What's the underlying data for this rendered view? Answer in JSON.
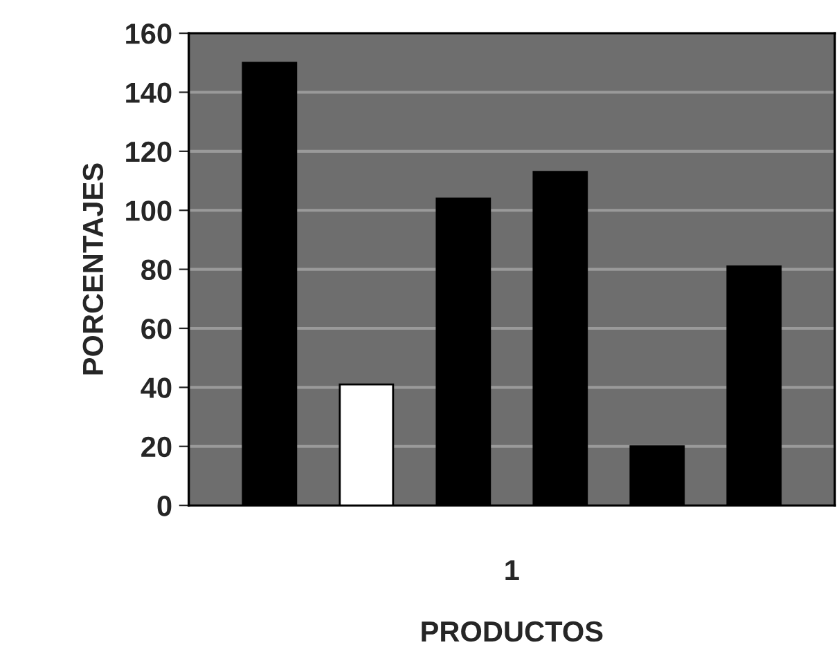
{
  "chart_data": {
    "type": "bar",
    "xlabel": "PRODUCTOS",
    "ylabel": "PORCENTAJES",
    "categories": [
      "1"
    ],
    "series": [
      {
        "color": "#000000",
        "values": [
          150
        ]
      },
      {
        "color": "#ffffff",
        "values": [
          41
        ]
      },
      {
        "color": "#000000",
        "values": [
          104
        ]
      },
      {
        "color": "#000000",
        "values": [
          113
        ]
      },
      {
        "color": "#000000",
        "values": [
          20
        ]
      },
      {
        "color": "#000000",
        "values": [
          81
        ]
      }
    ],
    "ylim": [
      0,
      160
    ],
    "yticks": [
      0,
      20,
      40,
      60,
      80,
      100,
      120,
      140,
      160
    ],
    "grid": "y"
  }
}
